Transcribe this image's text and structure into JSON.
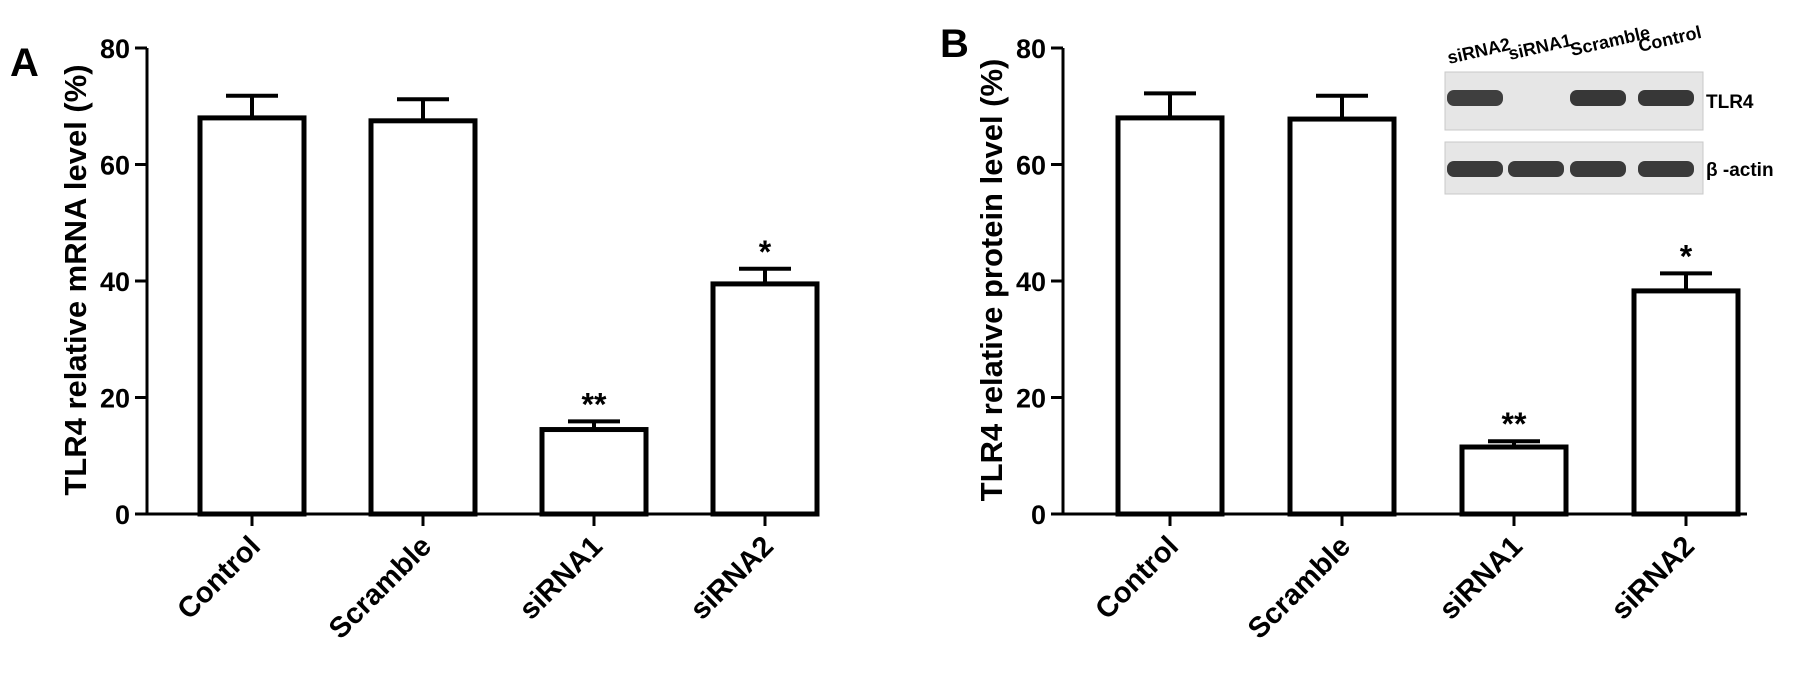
{
  "chart_data": [
    {
      "panel": "A",
      "type": "bar",
      "categories": [
        "Control",
        "Scramble",
        "siRNA1",
        "siRNA2"
      ],
      "values": [
        68,
        67.5,
        14.5,
        39.5
      ],
      "errors": [
        3.8,
        3.7,
        1.4,
        2.6
      ],
      "annotations": [
        "",
        "",
        "**",
        "*"
      ],
      "ylabel": "TLR4 relative mRNA level (%)",
      "ylim": [
        0,
        80
      ],
      "yticks": [
        0,
        20,
        40,
        60,
        80
      ]
    },
    {
      "panel": "B",
      "type": "bar",
      "categories": [
        "Control",
        "Scramble",
        "siRNA1",
        "siRNA2"
      ],
      "values": [
        68,
        67.8,
        11.5,
        38.3
      ],
      "errors": [
        4.2,
        4,
        1,
        3
      ],
      "annotations": [
        "",
        "",
        "**",
        "*"
      ],
      "ylabel": "TLR4 relative protein level  (%)",
      "ylim": [
        0,
        80
      ],
      "yticks": [
        0,
        20,
        40,
        60,
        80
      ],
      "inset": {
        "lanes": [
          "siRNA2",
          "siRNA1",
          "Scramble",
          "Control"
        ],
        "rows": [
          "TLR4",
          "β -actin"
        ],
        "band_intensity": [
          [
            0.85,
            0.0,
            0.95,
            0.95
          ],
          [
            0.9,
            0.9,
            0.9,
            0.9
          ]
        ]
      }
    }
  ]
}
